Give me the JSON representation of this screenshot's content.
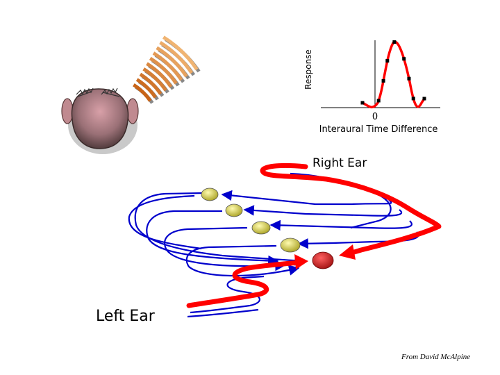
{
  "graph": {
    "y_label": "Response",
    "x_label": "Interaural Time Difference",
    "zero_label": "0"
  },
  "labels": {
    "right_ear": "Right Ear",
    "left_ear": "Left Ear",
    "credit": "From David McAlpine"
  },
  "colors": {
    "axon_red": "#ff0000",
    "axon_blue": "#0000cc",
    "neuron_yellow": "#e8e060",
    "neuron_active": "#e02020",
    "wave": "#c86418",
    "head": "#8a6a6e"
  },
  "icons": {
    "head": "head-top-view",
    "sound": "sound-wave-fan"
  }
}
